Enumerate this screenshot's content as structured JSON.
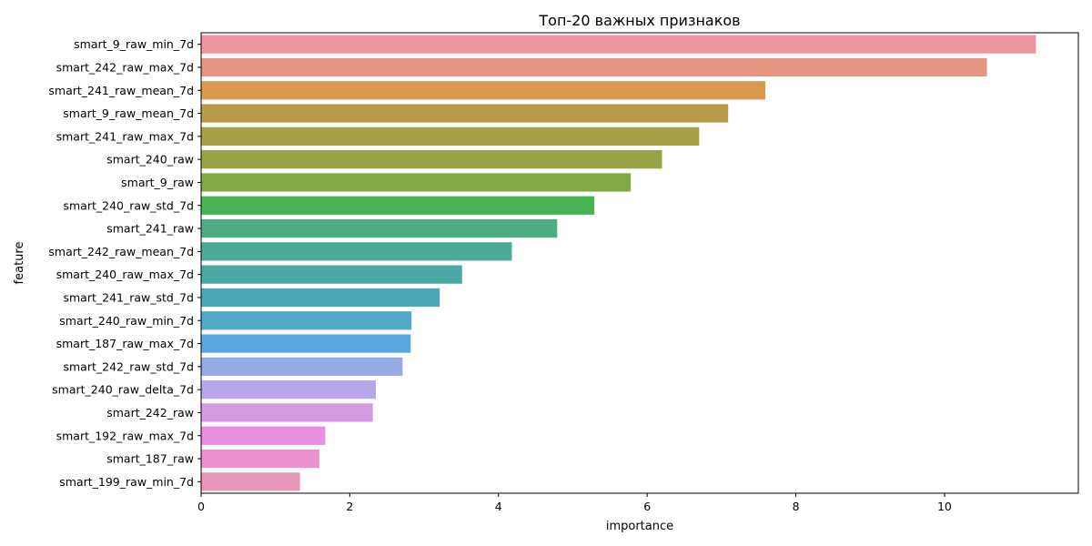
{
  "chart_data": {
    "type": "bar",
    "orientation": "horizontal",
    "title": "Топ-20 важных признаков",
    "xlabel": "importance",
    "ylabel": "feature",
    "xlim": [
      0,
      11.8
    ],
    "xticks": [
      0,
      2,
      4,
      6,
      8,
      10
    ],
    "grid": false,
    "categories": [
      "smart_9_raw_min_7d",
      "smart_242_raw_max_7d",
      "smart_241_raw_mean_7d",
      "smart_9_raw_mean_7d",
      "smart_241_raw_max_7d",
      "smart_240_raw",
      "smart_9_raw",
      "smart_240_raw_std_7d",
      "smart_241_raw",
      "smart_242_raw_mean_7d",
      "smart_240_raw_max_7d",
      "smart_241_raw_std_7d",
      "smart_240_raw_min_7d",
      "smart_187_raw_max_7d",
      "smart_242_raw_std_7d",
      "smart_240_raw_delta_7d",
      "smart_242_raw",
      "smart_192_raw_max_7d",
      "smart_187_raw",
      "smart_199_raw_min_7d"
    ],
    "values": [
      11.23,
      10.57,
      7.59,
      7.09,
      6.7,
      6.2,
      5.78,
      5.29,
      4.79,
      4.18,
      3.51,
      3.21,
      2.83,
      2.82,
      2.71,
      2.35,
      2.31,
      1.67,
      1.59,
      1.33
    ],
    "colors": [
      "#ed969f",
      "#e69582",
      "#d99a4e",
      "#b89b4a",
      "#a8a047",
      "#97a346",
      "#82a848",
      "#48b254",
      "#4ead84",
      "#4cab96",
      "#4aa9a5",
      "#4ca9b4",
      "#50aac8",
      "#5aa9dc",
      "#95abe5",
      "#b7a7ea",
      "#d49be3",
      "#e78ee0",
      "#ea92cf",
      "#e798b8"
    ]
  }
}
